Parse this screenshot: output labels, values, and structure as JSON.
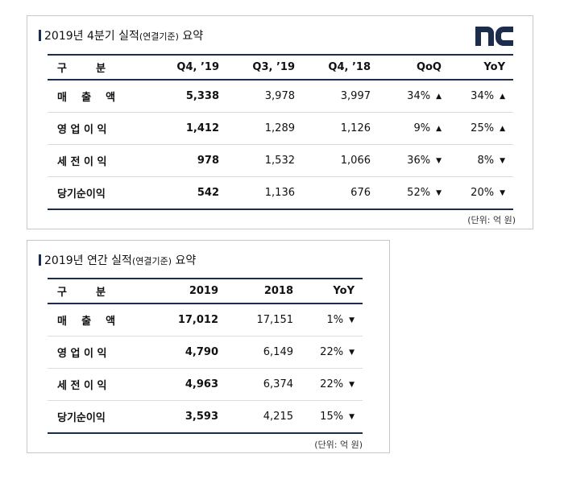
{
  "logo": {
    "text": "nc"
  },
  "quarterly": {
    "title_main": "2019년 4분기 실적",
    "title_small": "(연결기준)",
    "title_tail": " 요약",
    "headers": [
      "구        분",
      "Q4, ’19",
      "Q3, ’19",
      "Q4, ’18",
      "QoQ",
      "YoY"
    ],
    "rows": [
      {
        "label": "매    출    액",
        "q4_19": "5,338",
        "q3_19": "3,978",
        "q4_18": "3,997",
        "qoq": "34%",
        "qoq_dir": "▲",
        "yoy": "34%",
        "yoy_dir": "▲"
      },
      {
        "label": "영 업 이 익",
        "q4_19": "1,412",
        "q3_19": "1,289",
        "q4_18": "1,126",
        "qoq": "9%",
        "qoq_dir": "▲",
        "yoy": "25%",
        "yoy_dir": "▲"
      },
      {
        "label": "세 전 이 익",
        "q4_19": "978",
        "q3_19": "1,532",
        "q4_18": "1,066",
        "qoq": "36%",
        "qoq_dir": "▼",
        "yoy": "8%",
        "yoy_dir": "▼"
      },
      {
        "label": "당기순이익",
        "q4_19": "542",
        "q3_19": "1,136",
        "q4_18": "676",
        "qoq": "52%",
        "qoq_dir": "▼",
        "yoy": "20%",
        "yoy_dir": "▼"
      }
    ],
    "unit": "(단위: 억 원)"
  },
  "annual": {
    "title_main": "2019년 연간 실적",
    "title_small": "(연결기준)",
    "title_tail": " 요약",
    "headers": [
      "구        분",
      "2019",
      "2018",
      "YoY"
    ],
    "rows": [
      {
        "label": "매    출    액",
        "y2019": "17,012",
        "y2018": "17,151",
        "yoy": "1%",
        "yoy_dir": "▼"
      },
      {
        "label": "영 업 이 익",
        "y2019": "4,790",
        "y2018": "6,149",
        "yoy": "22%",
        "yoy_dir": "▼"
      },
      {
        "label": "세 전 이 익",
        "y2019": "4,963",
        "y2018": "6,374",
        "yoy": "22%",
        "yoy_dir": "▼"
      },
      {
        "label": "당기순이익",
        "y2019": "3,593",
        "y2018": "4,215",
        "yoy": "15%",
        "yoy_dir": "▼"
      }
    ],
    "unit": "(단위: 억 원)"
  }
}
